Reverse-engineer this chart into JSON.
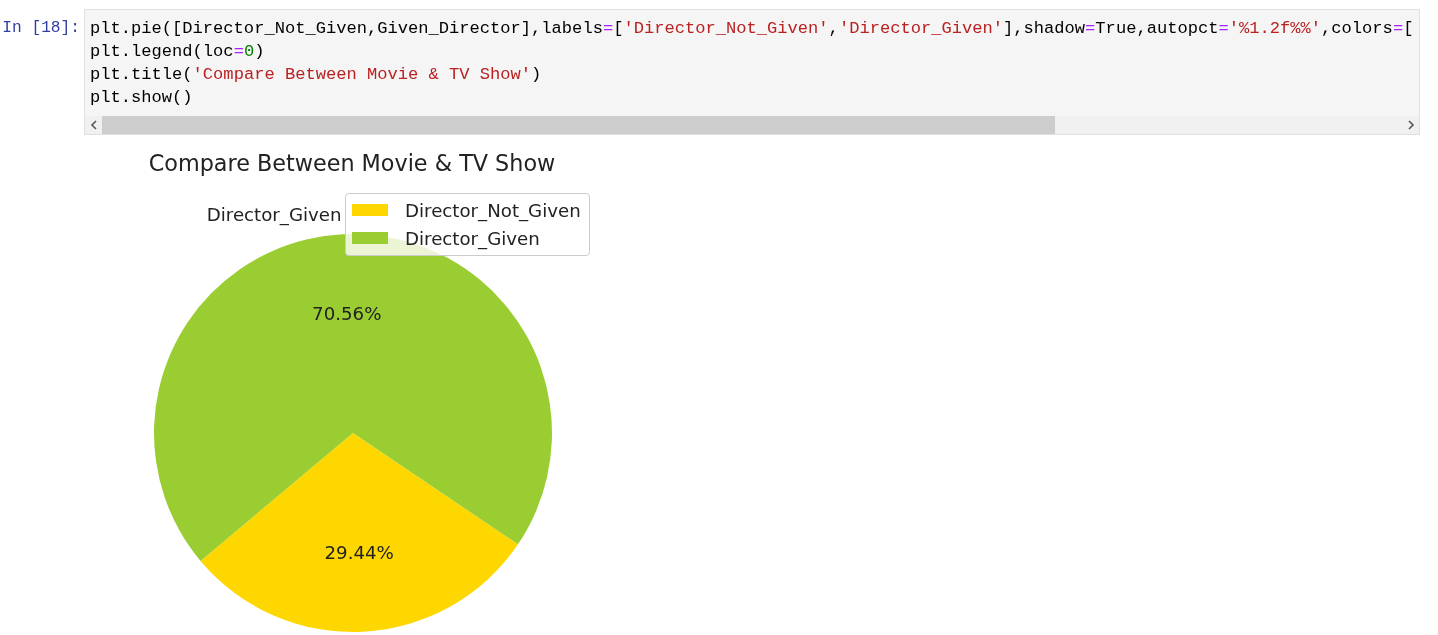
{
  "chart_data": {
    "type": "pie",
    "title": "Compare Between Movie & TV Show",
    "categories": [
      "Director_Not_Given",
      "Director_Given"
    ],
    "values": [
      29.44,
      70.56
    ],
    "colors": [
      "#ffd700",
      "#9acd32"
    ],
    "value_labels": [
      "29.44%",
      "70.56%"
    ],
    "legend": "top right",
    "annotations": [
      "In [18]:",
      "plt.pie([Director_Not_Given,Given_Director],labels=['Director_Not_Given','Director_Given'],shadow=True,autopct='%1.2f%%',colors=[",
      "plt.legend(loc=0)",
      "plt.title('Compare Between Movie & TV Show')",
      "plt.show()"
    ]
  }
}
